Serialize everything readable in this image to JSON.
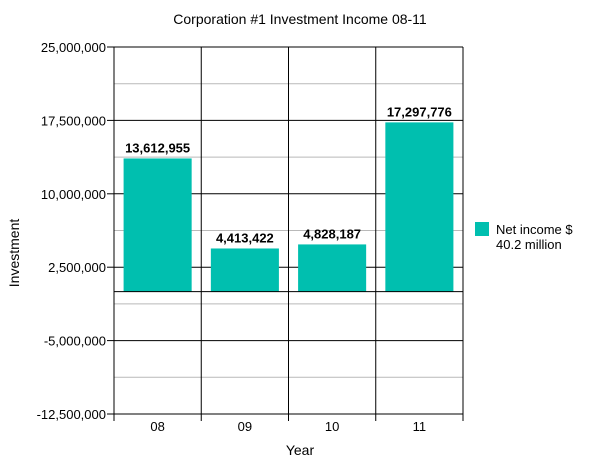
{
  "chart_data": {
    "type": "bar",
    "title": "Corporation #1 Investment Income 08-11",
    "xlabel": "Year",
    "ylabel": "Investment",
    "categories": [
      "08",
      "09",
      "10",
      "11"
    ],
    "series": [
      {
        "name": "Net income $ 40.2 million",
        "values": [
          13612955,
          4413422,
          4828187,
          17297776
        ],
        "value_labels": [
          "13,612,955",
          "4,413,422",
          "4,828,187",
          "17,297,776"
        ],
        "color": "#00BFAF"
      }
    ],
    "yticks": [
      25000000,
      17500000,
      10000000,
      2500000,
      -5000000,
      -12500000
    ],
    "ytick_labels": [
      "25,000,000",
      "17,500,000",
      "10,000,000",
      "2,500,000",
      "-5,000,000",
      "-12,500,000"
    ],
    "ylim": [
      -12500000,
      25000000
    ],
    "grid": true,
    "legend_position": "right",
    "legend_lines": [
      "Net income $",
      "40.2 million"
    ]
  }
}
